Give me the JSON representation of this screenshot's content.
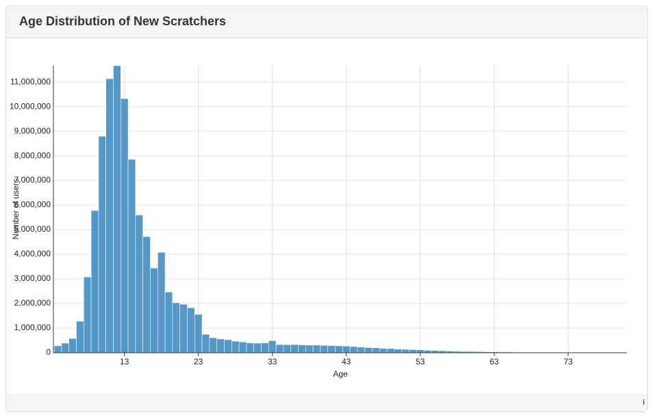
{
  "header": {
    "title": "Age Distribution of New Scratchers"
  },
  "chart_data": {
    "type": "bar",
    "x": [
      4,
      5,
      6,
      7,
      8,
      9,
      10,
      11,
      12,
      13,
      14,
      15,
      16,
      17,
      18,
      19,
      20,
      21,
      22,
      23,
      24,
      25,
      26,
      27,
      28,
      29,
      30,
      31,
      32,
      33,
      34,
      35,
      36,
      37,
      38,
      39,
      40,
      41,
      42,
      43,
      44,
      45,
      46,
      47,
      48,
      49,
      50,
      51,
      52,
      53,
      54,
      55,
      56,
      57,
      58,
      59,
      60,
      61,
      62,
      63,
      64,
      65,
      66,
      67,
      68,
      69,
      70,
      71,
      72,
      73,
      74,
      75,
      76,
      77,
      78,
      79,
      80
    ],
    "values": [
      280000,
      390000,
      580000,
      1280000,
      3080000,
      5780000,
      8800000,
      11140000,
      11670000,
      10330000,
      7860000,
      5600000,
      4720000,
      3440000,
      4080000,
      2470000,
      2030000,
      1970000,
      1830000,
      1560000,
      750000,
      610000,
      560000,
      530000,
      470000,
      440000,
      400000,
      390000,
      400000,
      490000,
      330000,
      330000,
      330000,
      320000,
      310000,
      310000,
      300000,
      290000,
      280000,
      270000,
      250000,
      230000,
      210000,
      200000,
      180000,
      170000,
      150000,
      140000,
      130000,
      120000,
      100000,
      90000,
      80000,
      70000,
      60000,
      55000,
      50000,
      45000,
      40000,
      35000,
      30000,
      28000,
      25000,
      22000,
      20000,
      18000,
      16000,
      15000,
      14000,
      13000,
      12000,
      11000,
      10000,
      10000,
      9000,
      9000,
      8000
    ],
    "color": "#5497c9",
    "xlabel": "Age",
    "ylabel": "Number of users",
    "xlim": [
      3.4,
      80.9
    ],
    "ylim": [
      0,
      11670000
    ],
    "xticks": [
      13,
      23,
      33,
      43,
      53,
      63,
      73
    ],
    "yticks": [
      0,
      {
        "value": 1000000,
        "label": "1,000,000"
      },
      {
        "value": 2000000,
        "label": "2,000,000"
      },
      {
        "value": 3000000,
        "label": "3,000,000"
      },
      {
        "value": 4000000,
        "label": "4,000,000"
      },
      {
        "value": 5000000,
        "label": "5,000,000"
      },
      {
        "value": 6000000,
        "label": "6,000,000"
      },
      {
        "value": 7000000,
        "label": "7,000,000"
      },
      {
        "value": 8000000,
        "label": "8,000,000"
      },
      {
        "value": 9000000,
        "label": "9,000,000"
      },
      {
        "value": 10000000,
        "label": "10,000,000"
      },
      {
        "value": 11000000,
        "label": "11,000,000"
      }
    ],
    "grid": true
  },
  "footer": {
    "info": "i"
  }
}
